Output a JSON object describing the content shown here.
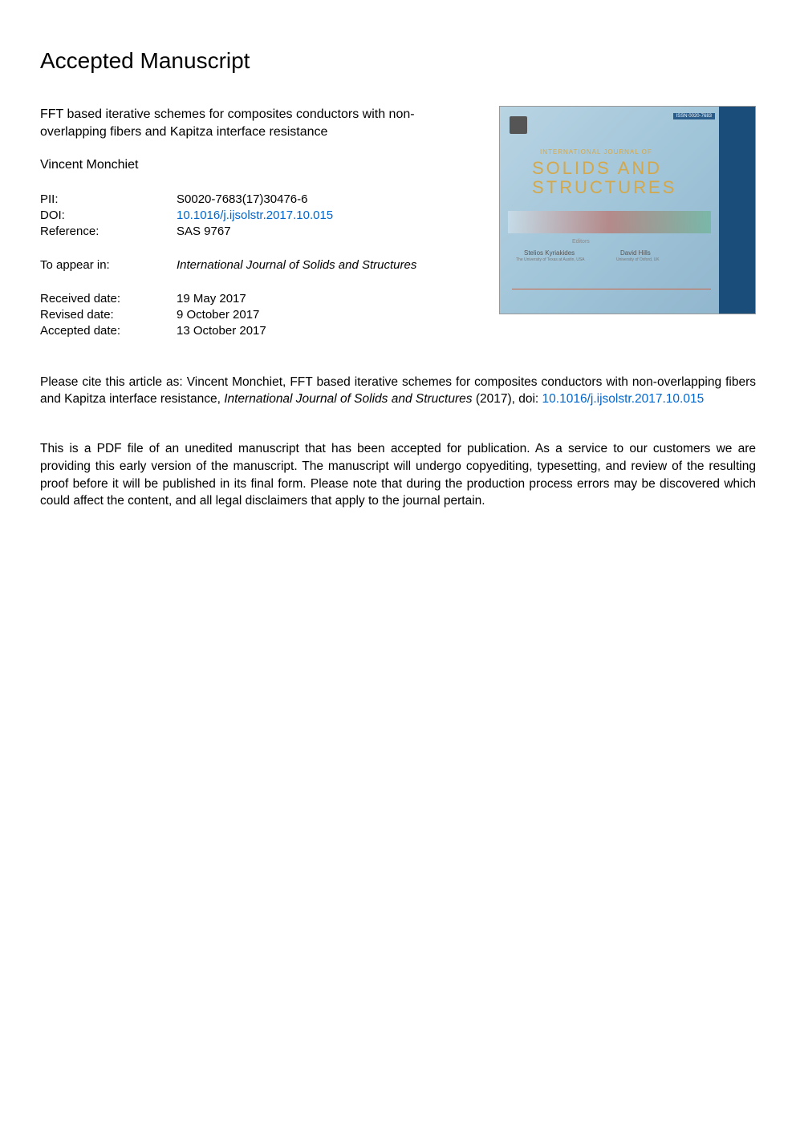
{
  "heading": "Accepted Manuscript",
  "title": "FFT based iterative schemes for composites conductors with non-overlapping fibers and Kapitza interface resistance",
  "authors": "Vincent Monchiet",
  "meta": {
    "pii_label": "PII:",
    "pii_value": "S0020-7683(17)30476-6",
    "doi_label": "DOI:",
    "doi_value": "10.1016/j.ijsolstr.2017.10.015",
    "ref_label": "Reference:",
    "ref_value": "SAS 9767"
  },
  "appear": {
    "label": "To appear in:",
    "journal": "International Journal of Solids and Structures"
  },
  "dates": {
    "received_label": "Received date:",
    "received_value": "19 May 2017",
    "revised_label": "Revised date:",
    "revised_value": "9 October 2017",
    "accepted_label": "Accepted date:",
    "accepted_value": "13 October 2017"
  },
  "citation": {
    "prefix": "Please cite this article as: Vincent Monchiet, FFT based iterative schemes for composites conductors with non-overlapping fibers and Kapitza interface resistance, ",
    "journal": "International Journal of Solids and Structures",
    "year": " (2017), doi: ",
    "doi": "10.1016/j.ijsolstr.2017.10.015"
  },
  "disclaimer": "This is a PDF file of an unedited manuscript that has been accepted for publication. As a service to our customers we are providing this early version of the manuscript. The manuscript will undergo copyediting, typesetting, and review of the resulting proof before it will be published in its final form. Please note that during the production process errors may be discovered which could affect the content, and all legal disclaimers that apply to the journal pertain.",
  "cover": {
    "issn": "ISSN 0020-7683",
    "subtitle": "INTERNATIONAL JOURNAL OF",
    "title1": "SOLIDS AND",
    "title2": "STRUCTURES",
    "editors_label": "Editors",
    "editor1_name": "Stelios Kyriakides",
    "editor1_aff": "The University of Texas at Austin, USA",
    "editor2_name": "David Hills",
    "editor2_aff": "University of Oxford, UK",
    "background_gradient": [
      "#b8d4e3",
      "#a0c4d8",
      "#8eb4cc"
    ],
    "sidebar_color": "#1a4d7a",
    "title_color": "#d4a84a"
  },
  "colors": {
    "link": "#0066cc",
    "text": "#000000",
    "background": "#ffffff"
  },
  "typography": {
    "heading_fontsize": 28,
    "body_fontsize": 15.5,
    "meta_fontsize": 15,
    "font_family": "Arial, Helvetica, sans-serif"
  }
}
